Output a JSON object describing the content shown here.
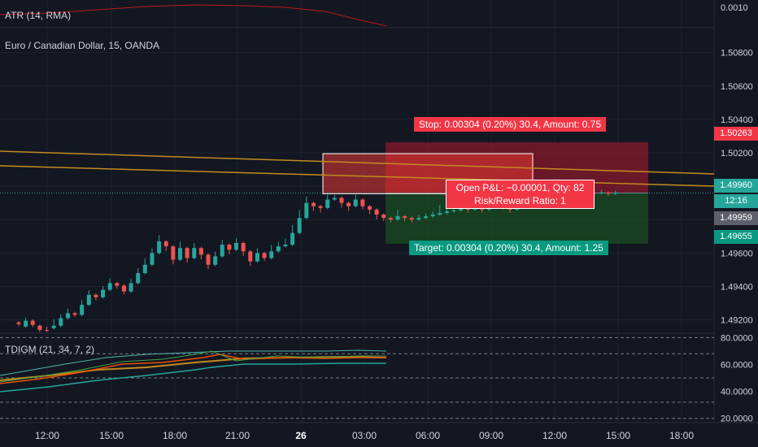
{
  "atr_title": "ATR (14, RMA)",
  "atr_axis": "0.0010",
  "main_title": "Euro / Canadian Dollar, 15, OANDA",
  "tdigm_title": "TDIGM (21, 34, 7, 2)",
  "stop_label": "Stop: 0.00304 (0.20%) 30.4, Amount: 0.75",
  "target_label": "Target: 0.00304 (0.20%) 30.4, Amount: 1.25",
  "pnl_line1": "Open P&L: −0.00001, Qty: 82",
  "pnl_line2": "Risk/Reward Ratio: 1",
  "price_tags": {
    "stop": "1.50263",
    "current": "1.49960",
    "countdown": "12:16",
    "entry": "1.49959",
    "target": "1.49655"
  },
  "colors": {
    "bg": "#131722",
    "up": "#26a69a",
    "down": "#ef5350",
    "stop_zone": "#b2182b",
    "target_zone": "#1b5e20",
    "trend": "#c38a1f",
    "stop_tag": "#f23645",
    "target_tag": "#089981",
    "current_tag": "#26a69a"
  },
  "chart_data": [
    {
      "type": "line",
      "title": "ATR (14, RMA)",
      "y_ticks": [
        "0.0010"
      ]
    },
    {
      "type": "candlestick",
      "title": "Euro / Canadian Dollar, 15, OANDA",
      "x_ticks": [
        "12:00",
        "15:00",
        "18:00",
        "21:00",
        "26",
        "03:00",
        "06:00",
        "09:00",
        "12:00",
        "15:00",
        "18:00"
      ],
      "y_ticks": [
        "1.50800",
        "1.50600",
        "1.50400",
        "1.50200",
        "1.50000",
        "1.49800",
        "1.49600",
        "1.49400",
        "1.49200"
      ],
      "y_range": [
        1.4912,
        1.5092
      ],
      "candles": [
        [
          1.49185,
          1.49175,
          1.4917
        ],
        [
          1.4916,
          1.49195,
          1.49205
        ],
        [
          1.49195,
          1.4917,
          1.49165
        ],
        [
          1.49165,
          1.4914,
          1.49135
        ],
        [
          1.4914,
          1.49135,
          1.4915
        ],
        [
          1.4915,
          1.49165,
          1.49195
        ],
        [
          1.49165,
          1.4921,
          1.49225
        ],
        [
          1.4921,
          1.4924,
          1.4926
        ],
        [
          1.4924,
          1.4923,
          1.49225
        ],
        [
          1.4923,
          1.4929,
          1.4931
        ],
        [
          1.4929,
          1.4935,
          1.4937
        ],
        [
          1.4935,
          1.49335,
          1.49325
        ],
        [
          1.49335,
          1.4938,
          1.49395
        ],
        [
          1.4938,
          1.4942,
          1.4944
        ],
        [
          1.4942,
          1.49405,
          1.49395
        ],
        [
          1.49405,
          1.4937,
          1.4936
        ],
        [
          1.4937,
          1.4942,
          1.4944
        ],
        [
          1.4942,
          1.4948,
          1.495
        ],
        [
          1.4948,
          1.4953,
          1.4956
        ],
        [
          1.4953,
          1.496,
          1.4962
        ],
        [
          1.496,
          1.4967,
          1.497
        ],
        [
          1.4967,
          1.4964,
          1.4962
        ],
        [
          1.4964,
          1.4956,
          1.4954
        ],
        [
          1.4956,
          1.4963,
          1.4966
        ],
        [
          1.4963,
          1.4957,
          1.4955
        ],
        [
          1.4957,
          1.4963,
          1.4965
        ],
        [
          1.4963,
          1.4959,
          1.4957
        ],
        [
          1.4959,
          1.4953,
          1.4951
        ],
        [
          1.4953,
          1.4958,
          1.496
        ],
        [
          1.4958,
          1.4965,
          1.4967
        ],
        [
          1.4965,
          1.4962,
          1.496
        ],
        [
          1.4962,
          1.4966,
          1.4968
        ],
        [
          1.4966,
          1.4961,
          1.4959
        ],
        [
          1.4961,
          1.4955,
          1.4953
        ],
        [
          1.4955,
          1.496,
          1.4962
        ],
        [
          1.496,
          1.4957,
          1.4956
        ],
        [
          1.4957,
          1.4961,
          1.4964
        ],
        [
          1.4961,
          1.4964,
          1.4966
        ],
        [
          1.4964,
          1.4965,
          1.4968
        ],
        [
          1.4965,
          1.4972,
          1.4976
        ],
        [
          1.4972,
          1.4981,
          1.4985
        ],
        [
          1.4981,
          1.499,
          1.4993
        ],
        [
          1.499,
          1.4988,
          1.4986
        ],
        [
          1.4988,
          1.4987,
          1.4985
        ],
        [
          1.4987,
          1.4992,
          1.4994
        ],
        [
          1.4992,
          1.4993,
          1.4994
        ],
        [
          1.4993,
          1.499,
          1.4988
        ],
        [
          1.499,
          1.4988,
          1.4986
        ],
        [
          1.4988,
          1.4992,
          1.4994
        ],
        [
          1.4992,
          1.4988,
          1.4987
        ],
        [
          1.4988,
          1.4986,
          1.4984
        ],
        [
          1.4986,
          1.4983,
          1.4981
        ],
        [
          1.4983,
          1.4981,
          1.498
        ],
        [
          1.4981,
          1.498,
          1.4979
        ],
        [
          1.498,
          1.4982,
          1.4985
        ],
        [
          1.4982,
          1.4981,
          1.498
        ],
        [
          1.4981,
          1.498,
          1.4979
        ],
        [
          1.498,
          1.4981,
          1.4982
        ],
        [
          1.4981,
          1.4982,
          1.4983
        ],
        [
          1.4982,
          1.4983,
          1.4984
        ],
        [
          1.4983,
          1.4984,
          1.4988
        ],
        [
          1.4984,
          1.4985,
          1.4986
        ],
        [
          1.4985,
          1.49855,
          1.4986
        ],
        [
          1.49855,
          1.4987,
          1.4988
        ],
        [
          1.4987,
          1.4986,
          1.4985
        ],
        [
          1.4986,
          1.4987,
          1.4988
        ],
        [
          1.4987,
          1.4986,
          1.4985
        ],
        [
          1.4986,
          1.4988,
          1.4989
        ],
        [
          1.4988,
          1.499,
          1.4992
        ],
        [
          1.499,
          1.4988,
          1.4987
        ],
        [
          1.4988,
          1.4986,
          1.4985
        ],
        [
          1.4986,
          1.499,
          1.4992
        ],
        [
          1.499,
          1.4991,
          1.4993
        ],
        [
          1.4991,
          1.4993,
          1.4994
        ],
        [
          1.4993,
          1.4992,
          1.49915
        ],
        [
          1.4992,
          1.4994,
          1.4995
        ],
        [
          1.4994,
          1.49945,
          1.49955
        ],
        [
          1.49945,
          1.4994,
          1.49935
        ],
        [
          1.4994,
          1.4995,
          1.4996
        ],
        [
          1.4995,
          1.49955,
          1.4996
        ],
        [
          1.49955,
          1.4995,
          1.49945
        ],
        [
          1.4995,
          1.4996,
          1.4997
        ],
        [
          1.4996,
          1.49958,
          1.49975
        ],
        [
          1.49958,
          1.49962,
          1.4997
        ],
        [
          1.49962,
          1.49955,
          1.4995
        ],
        [
          1.49955,
          1.4996,
          1.49965
        ]
      ],
      "candle_note": "each candle: [open, close, extreme high-or-low]",
      "positions": [
        {
          "stop": 1.50263,
          "entry": 1.49959,
          "target": 1.49655
        },
        {
          "stop": 1.50195,
          "entry": 1.49955
        }
      ]
    },
    {
      "type": "line",
      "title": "TDIGM (21, 34, 7, 2)",
      "y_ticks": [
        "80.0000",
        "60.0000",
        "40.0000",
        "20.0000"
      ],
      "y_range": [
        18,
        82
      ],
      "levels": [
        80,
        68,
        50,
        32,
        20
      ]
    }
  ]
}
